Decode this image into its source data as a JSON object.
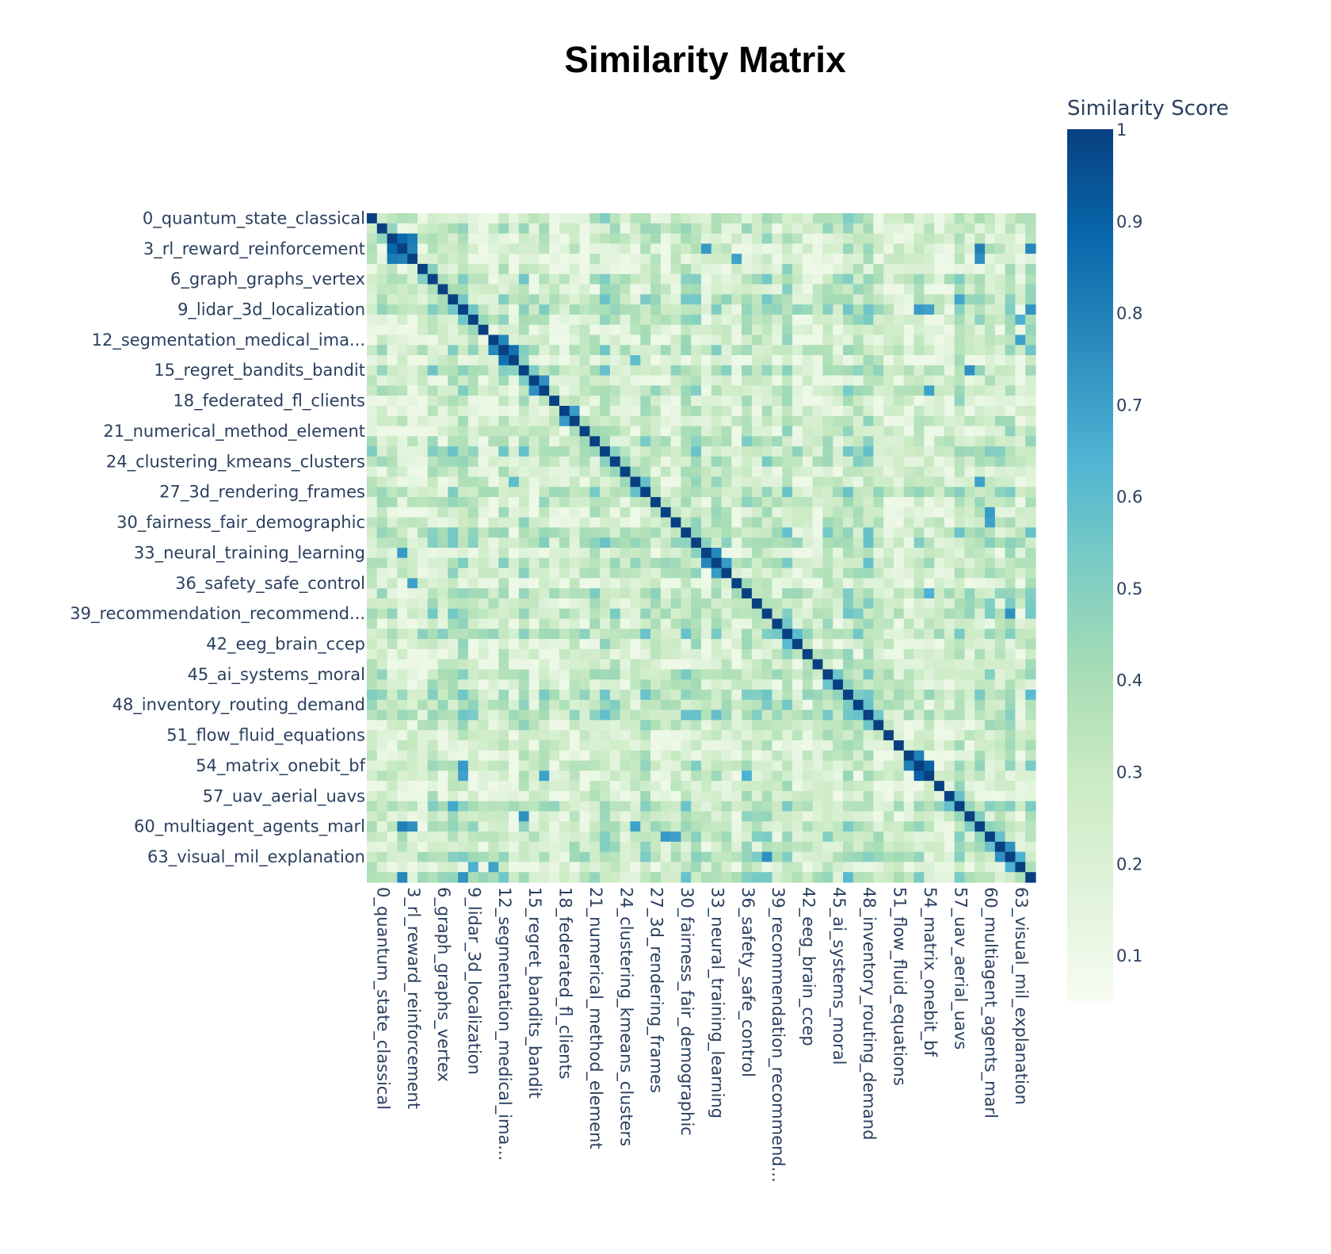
{
  "chart_data": {
    "type": "heatmap",
    "title": "Similarity Matrix",
    "size": 66,
    "tick_every": 3,
    "tick_labels": [
      {
        "index": 0,
        "label": "0_quantum_state_classical"
      },
      {
        "index": 3,
        "label": "3_rl_reward_reinforcement"
      },
      {
        "index": 6,
        "label": "6_graph_graphs_vertex"
      },
      {
        "index": 9,
        "label": "9_lidar_3d_localization"
      },
      {
        "index": 12,
        "label": "12_segmentation_medical_ima..."
      },
      {
        "index": 15,
        "label": "15_regret_bandits_bandit"
      },
      {
        "index": 18,
        "label": "18_federated_fl_clients"
      },
      {
        "index": 21,
        "label": "21_numerical_method_element"
      },
      {
        "index": 24,
        "label": "24_clustering_kmeans_clusters"
      },
      {
        "index": 27,
        "label": "27_3d_rendering_frames"
      },
      {
        "index": 30,
        "label": "30_fairness_fair_demographic"
      },
      {
        "index": 33,
        "label": "33_neural_training_learning"
      },
      {
        "index": 36,
        "label": "36_safety_safe_control"
      },
      {
        "index": 39,
        "label": "39_recommendation_recommend..."
      },
      {
        "index": 42,
        "label": "42_eeg_brain_ccep"
      },
      {
        "index": 45,
        "label": "45_ai_systems_moral"
      },
      {
        "index": 48,
        "label": "48_inventory_routing_demand"
      },
      {
        "index": 51,
        "label": "51_flow_fluid_equations"
      },
      {
        "index": 54,
        "label": "54_matrix_onebit_bf"
      },
      {
        "index": 57,
        "label": "57_uav_aerial_uavs"
      },
      {
        "index": 60,
        "label": "60_multiagent_agents_marl"
      },
      {
        "index": 63,
        "label": "63_visual_mil_explanation"
      }
    ],
    "colorscale": [
      [
        0.0,
        "#f7fcf0"
      ],
      [
        0.125,
        "#e0f3db"
      ],
      [
        0.25,
        "#ccebc5"
      ],
      [
        0.375,
        "#a8ddb5"
      ],
      [
        0.5,
        "#7bccc4"
      ],
      [
        0.625,
        "#4eb3d3"
      ],
      [
        0.75,
        "#2b8cbe"
      ],
      [
        0.875,
        "#0868ac"
      ],
      [
        1.0,
        "#084081"
      ]
    ],
    "zmin": 0.05,
    "zmax": 1,
    "diagonal_value": 1,
    "highlights": [
      [
        2,
        3,
        0.88
      ],
      [
        2,
        4,
        0.82
      ],
      [
        3,
        4,
        0.8
      ],
      [
        13,
        14,
        0.85
      ],
      [
        12,
        13,
        0.78
      ],
      [
        54,
        55,
        0.9
      ],
      [
        53,
        54,
        0.8
      ],
      [
        33,
        34,
        0.78
      ],
      [
        34,
        35,
        0.72
      ],
      [
        16,
        17,
        0.75
      ],
      [
        19,
        20,
        0.72
      ],
      [
        3,
        60,
        0.8
      ],
      [
        4,
        60,
        0.75
      ],
      [
        3,
        65,
        0.78
      ],
      [
        12,
        64,
        0.7
      ],
      [
        9,
        54,
        0.72
      ],
      [
        9,
        55,
        0.7
      ],
      [
        39,
        63,
        0.75
      ],
      [
        29,
        61,
        0.72
      ],
      [
        30,
        61,
        0.7
      ],
      [
        15,
        59,
        0.75
      ],
      [
        37,
        55,
        0.65
      ],
      [
        8,
        58,
        0.68
      ],
      [
        9,
        65,
        0.74
      ],
      [
        26,
        60,
        0.7
      ],
      [
        33,
        3,
        0.72
      ],
      [
        36,
        4,
        0.7
      ],
      [
        17,
        55,
        0.7
      ],
      [
        62,
        63,
        0.75
      ],
      [
        63,
        64,
        0.65
      ],
      [
        10,
        64,
        0.65
      ],
      [
        14,
        26,
        0.6
      ]
    ],
    "noise_seed": 20240517,
    "colorbar": {
      "title": "Similarity Score",
      "ticks": [
        0.1,
        0.2,
        0.3,
        0.4,
        0.5,
        0.6,
        0.7,
        0.8,
        0.9,
        1
      ],
      "tick_text": [
        "0.1",
        "0.2",
        "0.3",
        "0.4",
        "0.5",
        "0.6",
        "0.7",
        "0.8",
        "0.9",
        "1"
      ]
    }
  }
}
